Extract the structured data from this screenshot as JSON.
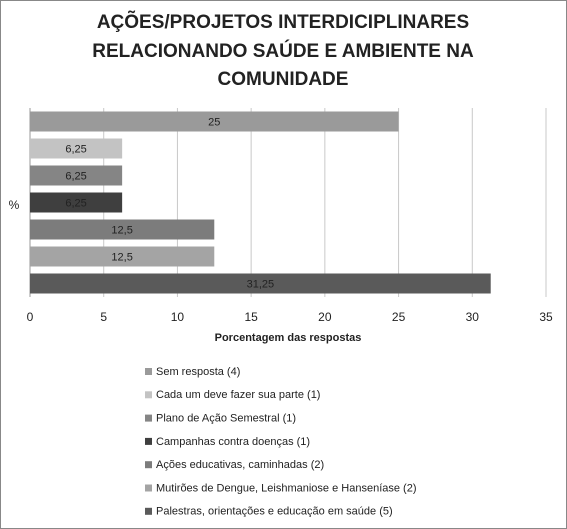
{
  "chart_data": {
    "type": "barh",
    "title": [
      "AÇÕES/PROJETOS INTERDICIPLINARES",
      "RELACIONANDO SAÚDE E AMBIENTE NA",
      "COMUNIDADE"
    ],
    "xlabel": "Porcentagem das respostas",
    "ylabel": "%",
    "xlim": [
      0,
      35
    ],
    "xticks": [
      0,
      5,
      10,
      15,
      20,
      25,
      30,
      35
    ],
    "grid": true,
    "series": [
      {
        "name": "Sem resposta (4)",
        "color": "#9a9a9a",
        "values": [
          25
        ],
        "value_labels": [
          "25"
        ]
      },
      {
        "name": "Cada um deve fazer sua parte (1)",
        "color": "#c3c3c3",
        "values": [
          6.25
        ],
        "value_labels": [
          "6,25"
        ]
      },
      {
        "name": "Plano de Ação Semestral (1)",
        "color": "#858585",
        "values": [
          6.25
        ],
        "value_labels": [
          "6,25"
        ]
      },
      {
        "name": "Campanhas contra doenças (1)",
        "color": "#3f3f3f",
        "values": [
          6.25
        ],
        "value_labels": [
          "6,25"
        ]
      },
      {
        "name": "Ações educativas, caminhadas (2)",
        "color": "#7c7c7c",
        "values": [
          12.5
        ],
        "value_labels": [
          "12,5"
        ]
      },
      {
        "name": "Mutirões de Dengue, Leishmaniose e Hanseníase (2)",
        "color": "#a4a4a4",
        "values": [
          12.5
        ],
        "value_labels": [
          "12,5"
        ]
      },
      {
        "name": "Palestras, orientações e educação em saúde (5)",
        "color": "#5a5a5a",
        "values": [
          31.25
        ],
        "value_labels": [
          "31,25"
        ]
      }
    ]
  }
}
